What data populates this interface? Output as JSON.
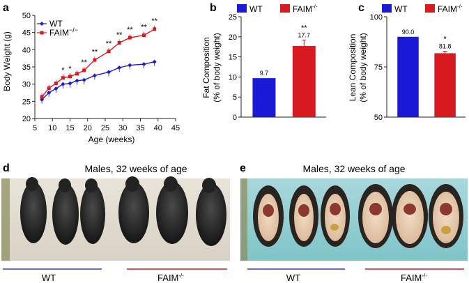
{
  "colors": {
    "wt": "#1a1ad6",
    "faim": "#d71920",
    "axis": "#222222"
  },
  "panels": {
    "a": "a",
    "b": "b",
    "c": "c",
    "d": "d",
    "e": "e"
  },
  "chart_data": [
    {
      "id": "a",
      "type": "line",
      "title": "",
      "xlabel": "Age (weeks)",
      "ylabel": "Body Weight (g)",
      "xlim": [
        5,
        45
      ],
      "ylim": [
        20,
        50
      ],
      "xticks": [
        5,
        10,
        15,
        20,
        25,
        30,
        35,
        40,
        45
      ],
      "yticks": [
        20,
        25,
        30,
        35,
        40,
        45,
        50
      ],
      "legend": [
        "WT",
        "FAIM"
      ],
      "legend_sup": "−/−",
      "series": [
        {
          "name": "WT",
          "x": [
            7,
            9,
            11,
            13,
            15,
            17,
            19,
            22,
            26,
            29,
            32,
            36,
            39
          ],
          "values": [
            25.5,
            27.5,
            28.7,
            30.0,
            30.2,
            31.0,
            31.2,
            32.5,
            33.5,
            34.8,
            35.5,
            35.8,
            36.5
          ]
        },
        {
          "name": "FAIM",
          "x": [
            7,
            9,
            11,
            13,
            15,
            17,
            19,
            22,
            26,
            29,
            32,
            36,
            39
          ],
          "values": [
            26.3,
            28.8,
            30.2,
            31.8,
            32.2,
            33.0,
            34.0,
            37.0,
            39.5,
            42.0,
            43.5,
            44.2,
            46.0
          ]
        }
      ],
      "significance": [
        {
          "x": 13,
          "label": "*"
        },
        {
          "x": 15,
          "label": "*"
        },
        {
          "x": 19,
          "label": "**"
        },
        {
          "x": 22,
          "label": "**"
        },
        {
          "x": 26,
          "label": "**"
        },
        {
          "x": 29,
          "label": "**"
        },
        {
          "x": 32,
          "label": "**"
        },
        {
          "x": 36,
          "label": "**"
        },
        {
          "x": 39,
          "label": "**"
        }
      ]
    },
    {
      "id": "b",
      "type": "bar",
      "xlabel": "",
      "ylabel": "Fat Composition",
      "ylabel2": "(% of body weight)",
      "ylim": [
        0,
        25
      ],
      "yticks": [
        0,
        5,
        10,
        15,
        20,
        25
      ],
      "categories": [
        "WT",
        "FAIM"
      ],
      "legend_sup": "-/-",
      "values": [
        9.7,
        17.7
      ],
      "errors": [
        0,
        1.5
      ],
      "value_labels": [
        "9.7",
        "17.7"
      ],
      "significance": [
        "",
        "**"
      ]
    },
    {
      "id": "c",
      "type": "bar",
      "xlabel": "",
      "ylabel": "Lean Composition",
      "ylabel2": "(% of body weight)",
      "ylim": [
        50,
        100
      ],
      "yticks": [
        50,
        75,
        100
      ],
      "categories": [
        "WT",
        "FAIM"
      ],
      "legend_sup": "-/-",
      "values": [
        90.0,
        81.8
      ],
      "errors": [
        0,
        1.0
      ],
      "value_labels": [
        "90.0",
        "81.8"
      ],
      "significance": [
        "",
        "*"
      ]
    }
  ],
  "photos": {
    "d": {
      "caption": "Males, 32 weeks of age",
      "group1": "WT",
      "group2": "FAIM",
      "group2_sup": "-/-"
    },
    "e": {
      "caption": "Males, 32 weeks of age",
      "group1": "WT",
      "group2": "FAIM",
      "group2_sup": "-/-"
    }
  }
}
